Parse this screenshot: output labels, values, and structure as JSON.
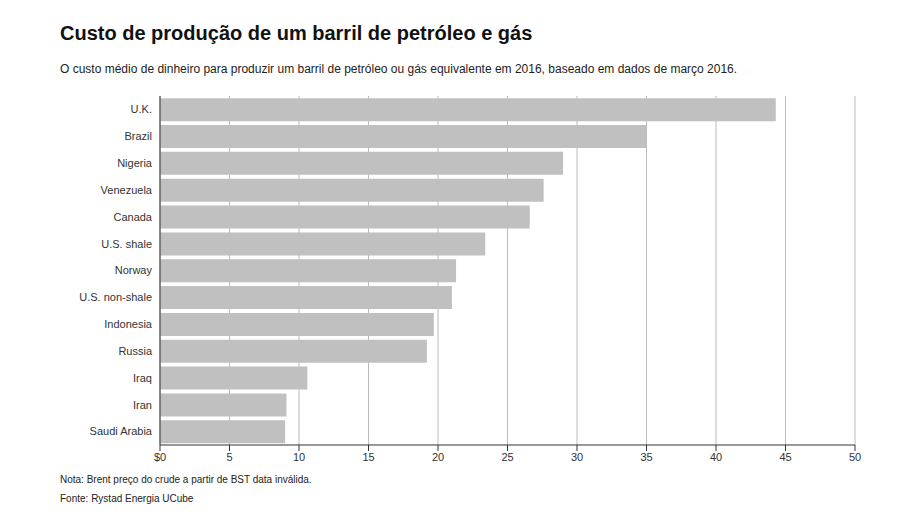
{
  "chart_data": {
    "type": "bar",
    "title": "Custo de produção de um barril de petróleo e gás",
    "subtitle": "O custo médio de dinheiro para produzir um barril de petróleo ou gás equivalente em 2016, baseado em dados de março 2016.",
    "categories": [
      "U.K.",
      "Brazil",
      "Nigeria",
      "Venezuela",
      "Canada",
      "U.S. shale",
      "Norway",
      "U.S. non-shale",
      "Indonesia",
      "Russia",
      "Iraq",
      "Iran",
      "Saudi Arabia"
    ],
    "values": [
      44.3,
      35.0,
      29.0,
      27.6,
      26.6,
      23.4,
      21.3,
      21.0,
      19.7,
      19.2,
      10.6,
      9.1,
      9.0
    ],
    "color": "#c0c0c0",
    "orientation": "horizontal",
    "xlim": [
      0,
      50
    ],
    "xticks": [
      {
        "value": 0,
        "label": "$0"
      },
      5,
      10,
      15,
      20,
      25,
      30,
      35,
      40,
      45,
      50
    ],
    "grid": true,
    "annotations": [
      "Nota: Brent preço do crude a partir de BST data inválida.",
      "Fonte: Rystad Energia UCube"
    ]
  }
}
